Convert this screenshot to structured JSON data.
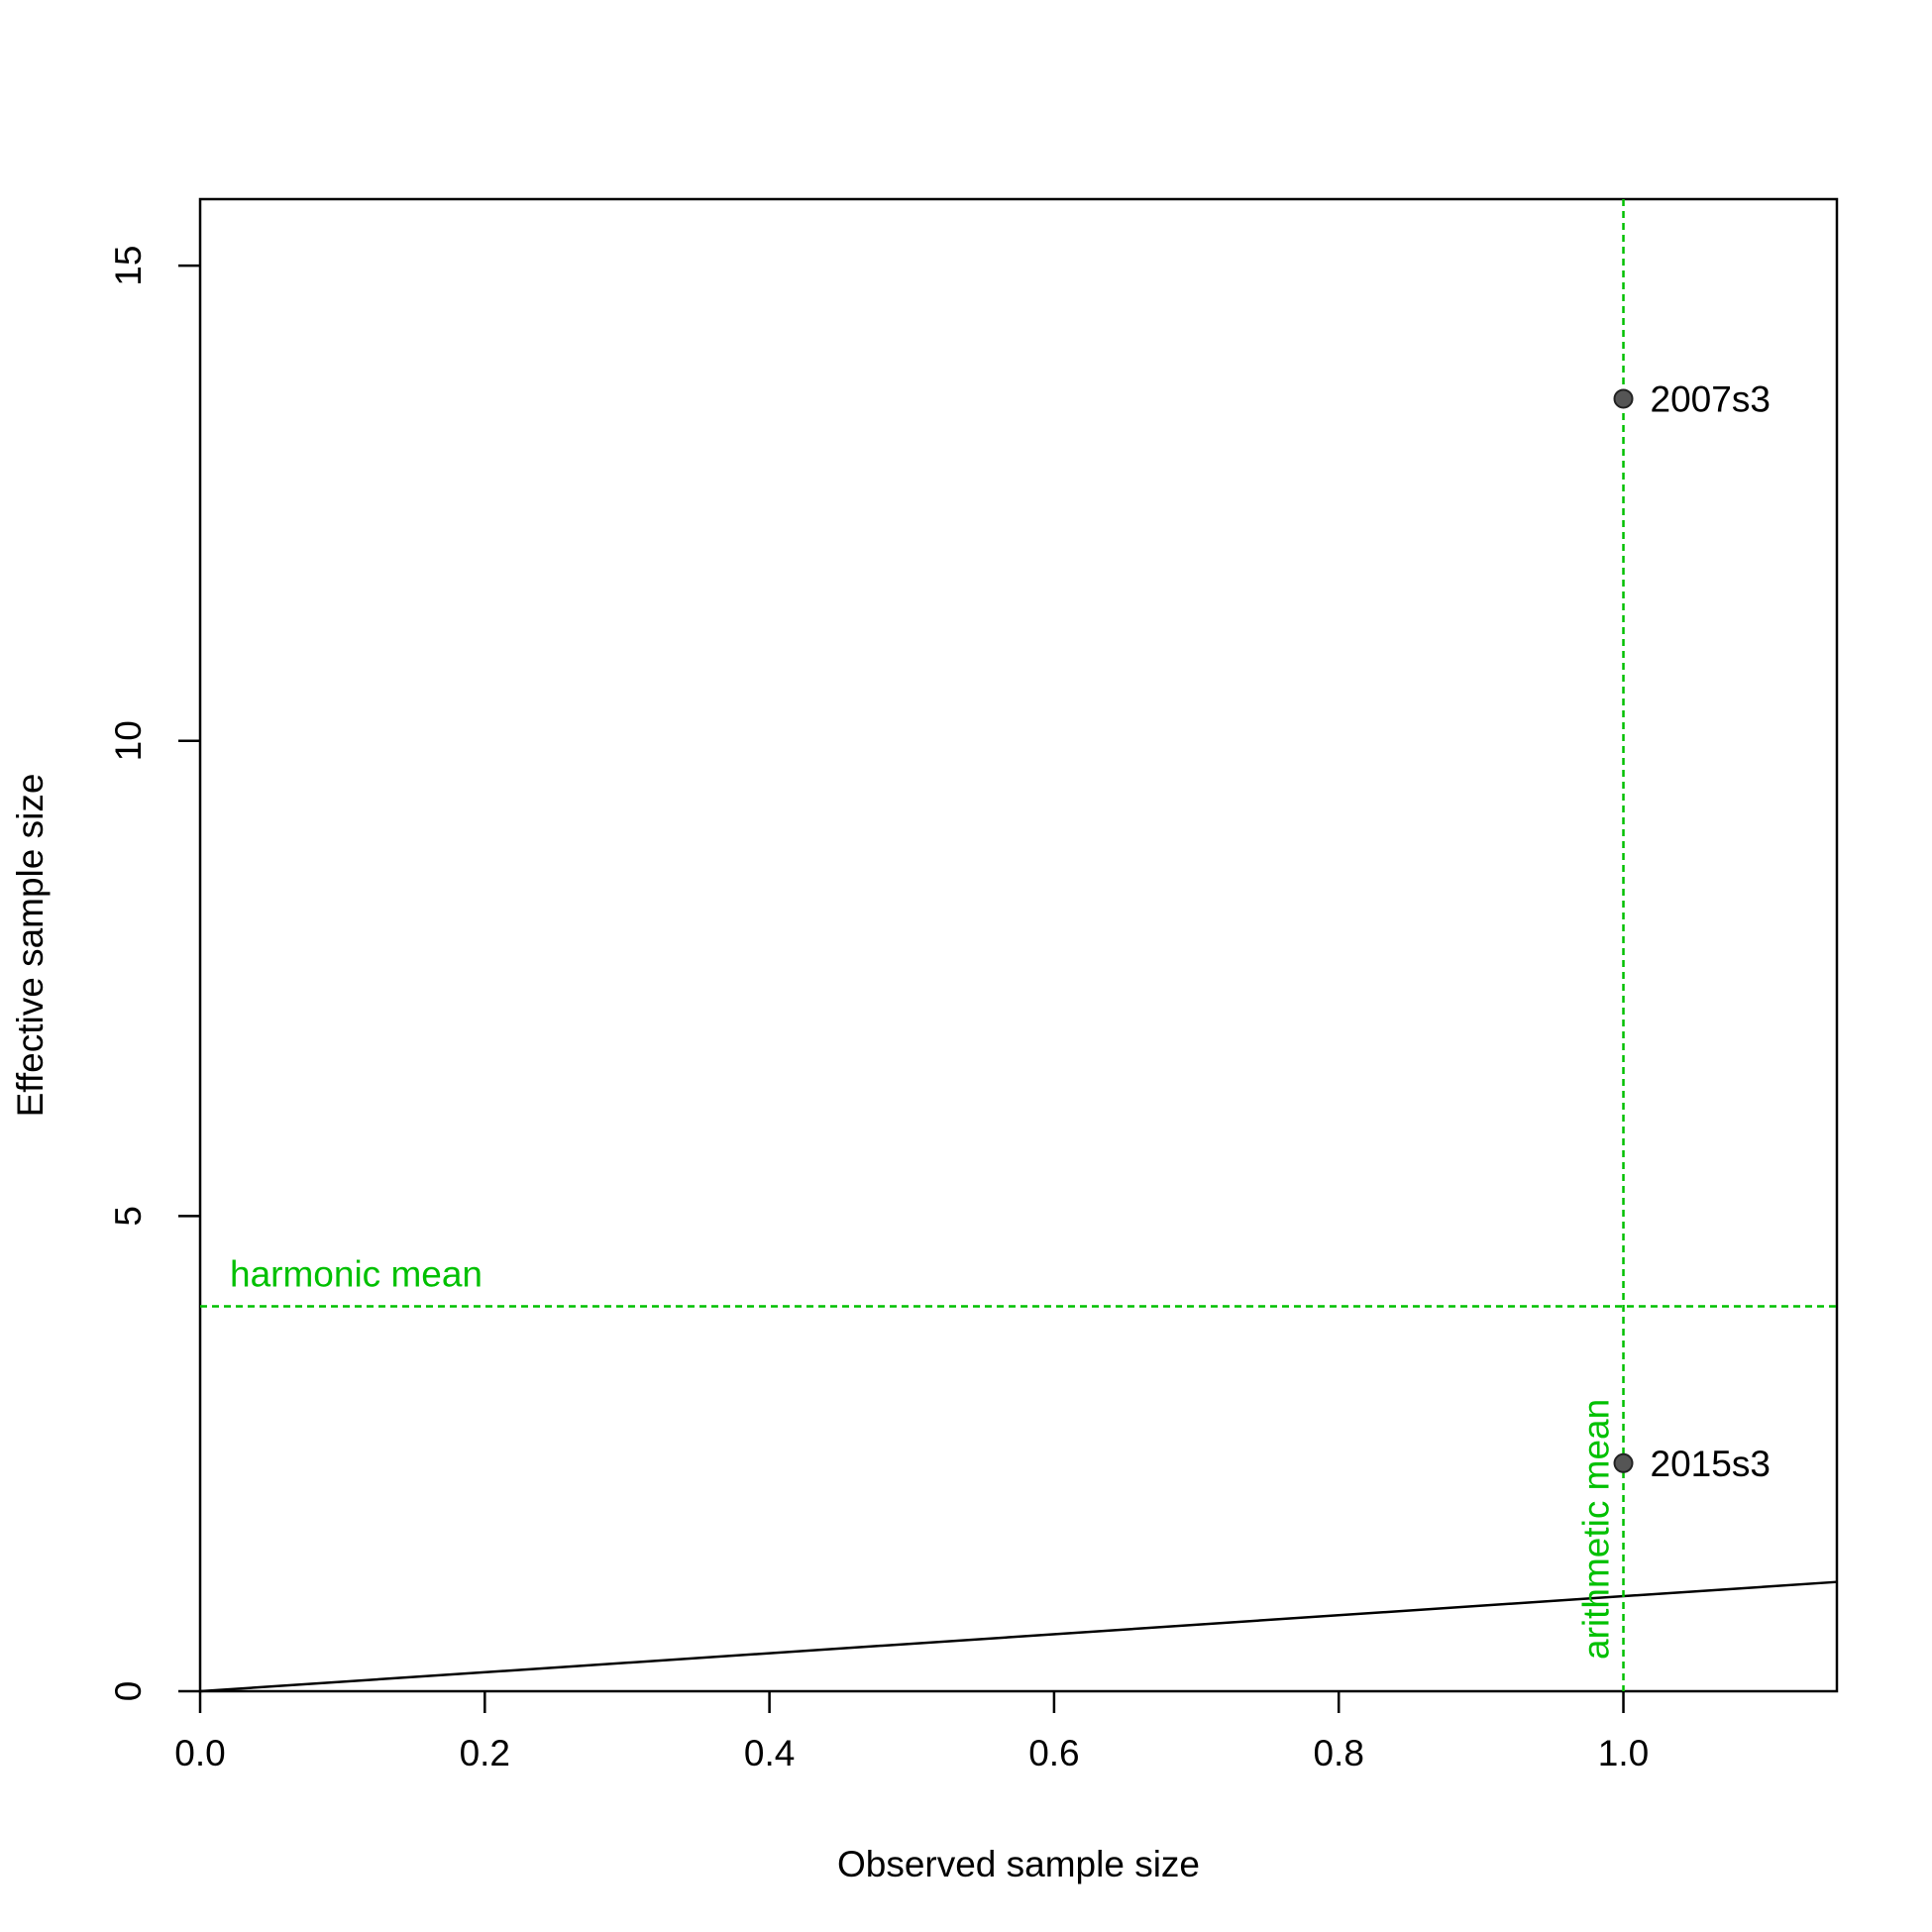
{
  "chart_data": {
    "type": "scatter",
    "title": "",
    "xlabel": "Observed sample size",
    "ylabel": "Effective sample size",
    "xlim": [
      0,
      1.15
    ],
    "ylim": [
      0,
      15.7
    ],
    "x_ticks": [
      0.0,
      0.2,
      0.4,
      0.6,
      0.8,
      1.0
    ],
    "x_tick_labels": [
      "0.0",
      "0.2",
      "0.4",
      "0.6",
      "0.8",
      "1.0"
    ],
    "y_ticks": [
      0,
      5,
      10,
      15
    ],
    "y_tick_labels": [
      "0",
      "5",
      "10",
      "15"
    ],
    "grid": false,
    "points": [
      {
        "x": 1.0,
        "y": 13.6,
        "label": "2007s3"
      },
      {
        "x": 1.0,
        "y": 2.4,
        "label": "2015s3"
      }
    ],
    "identity_line": {
      "slope": 1,
      "intercept": 0
    },
    "reference_lines": [
      {
        "orientation": "horizontal",
        "value": 4.05,
        "label": "harmonic mean"
      },
      {
        "orientation": "vertical",
        "value": 1.0,
        "label": "arithmetic mean"
      }
    ],
    "colors": {
      "reference": "#00c000",
      "point_fill": "#555555",
      "point_stroke": "#222222",
      "axis": "#000000"
    }
  }
}
